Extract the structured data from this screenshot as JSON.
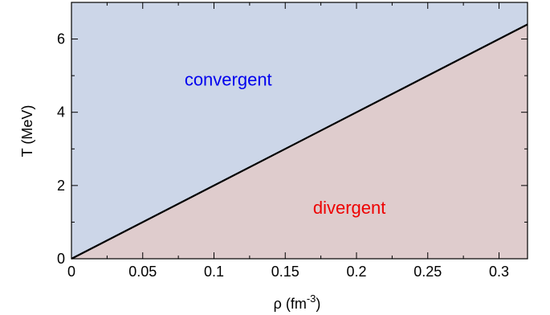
{
  "chart_data": {
    "type": "area",
    "xlabel": "ρ (fm",
    "xlabel_sup": "-3",
    "xlabel_close": ")",
    "ylabel": "T (MeV)",
    "xlim": [
      0,
      0.32
    ],
    "ylim": [
      0,
      7
    ],
    "x_ticks": [
      0,
      0.05,
      0.1,
      0.15,
      0.2,
      0.25,
      0.3
    ],
    "x_tick_labels": [
      "0",
      "0.05",
      "0.1",
      "0.15",
      "0.2",
      "0.25",
      "0.3"
    ],
    "y_ticks": [
      0,
      2,
      4,
      6
    ],
    "y_tick_labels": [
      "0",
      "2",
      "4",
      "6"
    ],
    "boundary": {
      "x": [
        0,
        0.32
      ],
      "y": [
        0,
        6.4
      ]
    },
    "regions": [
      {
        "label": "convergent",
        "color": "#ccd6e8",
        "label_color": "#0000ee",
        "label_at": [
          0.11,
          4.9
        ]
      },
      {
        "label": "divergent",
        "color": "#dfcccd",
        "label_color": "#ee0000",
        "label_at": [
          0.195,
          1.4
        ]
      }
    ],
    "line_color": "#000000",
    "grid": false
  }
}
